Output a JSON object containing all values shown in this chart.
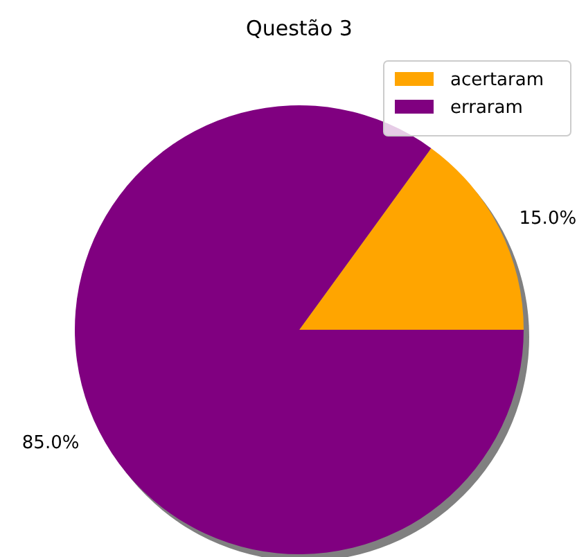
{
  "chart_data": {
    "type": "pie",
    "title": "Questão 3",
    "categories": [
      "acertaram",
      "erraram"
    ],
    "values": [
      15,
      85
    ],
    "colors": [
      "#ffa500",
      "#800080"
    ],
    "value_labels": [
      "15.0%",
      "85.0%"
    ],
    "legend": "top right"
  }
}
